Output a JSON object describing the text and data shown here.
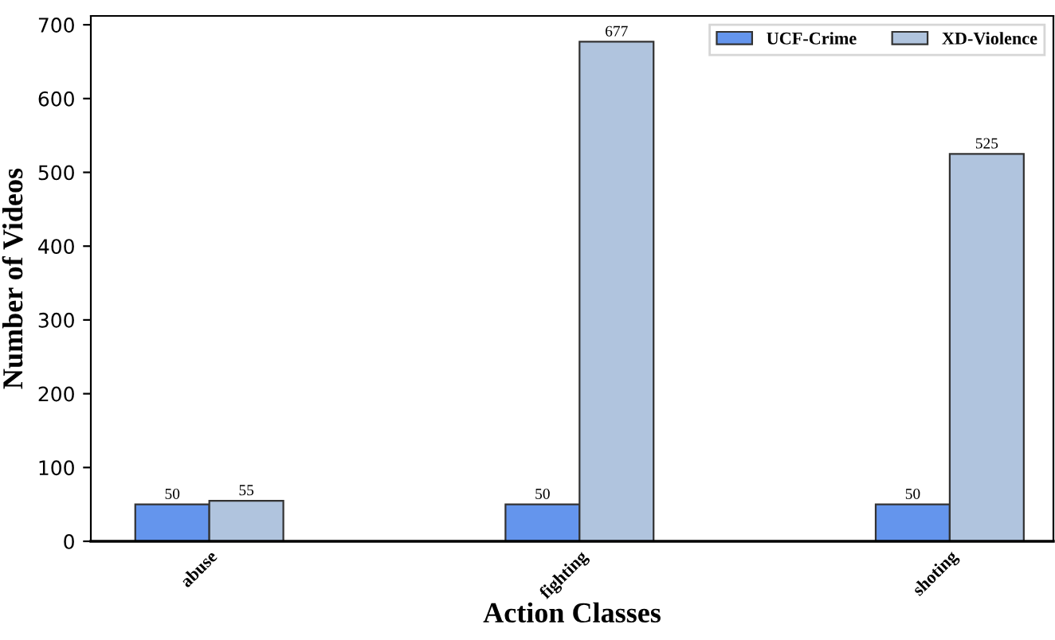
{
  "chart_data": {
    "type": "bar",
    "xlabel": "Action Classes",
    "ylabel": "Number of Videos",
    "categories": [
      "abuse",
      "fighting",
      "shoting"
    ],
    "series": [
      {
        "name": "UCF-Crime",
        "color": "#6495ed",
        "values": [
          50,
          50,
          50
        ]
      },
      {
        "name": "XD-Violence",
        "color": "#b0c4de",
        "values": [
          55,
          677,
          525
        ]
      }
    ],
    "ylim": [
      0,
      712
    ],
    "yticks": [
      0,
      100,
      200,
      300,
      400,
      500,
      600,
      700
    ],
    "data_labels": true,
    "grid": false,
    "legend": "top right"
  }
}
